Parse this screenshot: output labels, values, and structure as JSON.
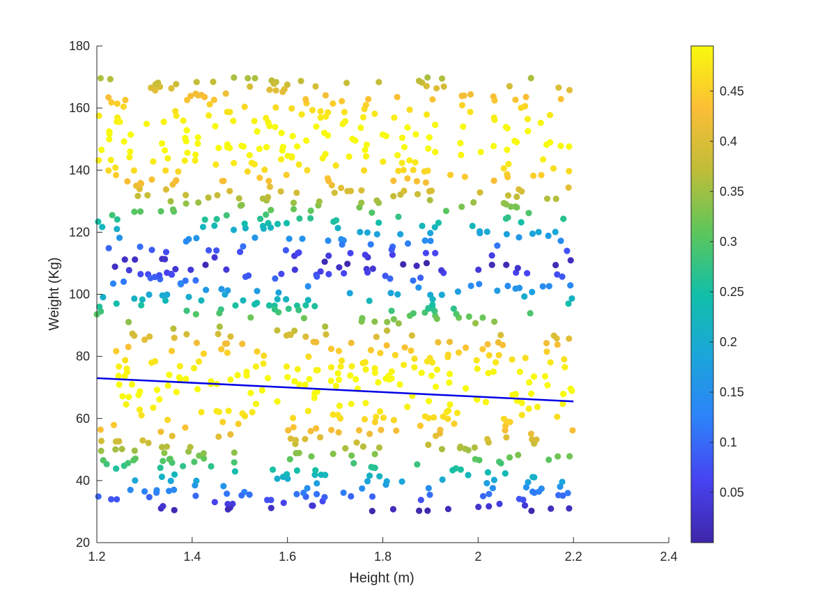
{
  "chart_data": {
    "type": "scatter",
    "xlabel": "Height (m)",
    "ylabel": "Weight (Kg)",
    "xlim": [
      1.2,
      2.4
    ],
    "ylim": [
      20,
      180
    ],
    "xticks": [
      1.2,
      1.4,
      1.6,
      1.8,
      2,
      2.2,
      2.4
    ],
    "yticks": [
      20,
      40,
      60,
      80,
      100,
      120,
      140,
      160,
      180
    ],
    "xtick_labels": [
      "1.2",
      "1.4",
      "1.6",
      "1.8",
      "2",
      "2.2",
      "2.4"
    ],
    "ytick_labels": [
      "20",
      "40",
      "60",
      "80",
      "100",
      "120",
      "140",
      "160",
      "180"
    ],
    "grid": false,
    "points": {
      "x_range": [
        1.2,
        2.2
      ],
      "y_range": [
        30,
        170
      ],
      "count": 1000,
      "color_value_rule": "value = 0.5 * |sin(pi * (weight - 30) / 80)|",
      "colormap": "parula"
    },
    "fit_line": {
      "x": [
        1.2,
        2.2
      ],
      "y": [
        73.0,
        65.5
      ],
      "color": "#0000e6"
    },
    "colorbar": {
      "range": [
        0,
        0.495
      ],
      "ticks": [
        0.05,
        0.1,
        0.15,
        0.2,
        0.25,
        0.3,
        0.35,
        0.4,
        0.45
      ],
      "tick_labels": [
        "0.05",
        "0.1",
        "0.15",
        "0.2",
        "0.25",
        "0.3",
        "0.35",
        "0.4",
        "0.45"
      ],
      "colormap": "parula"
    }
  }
}
